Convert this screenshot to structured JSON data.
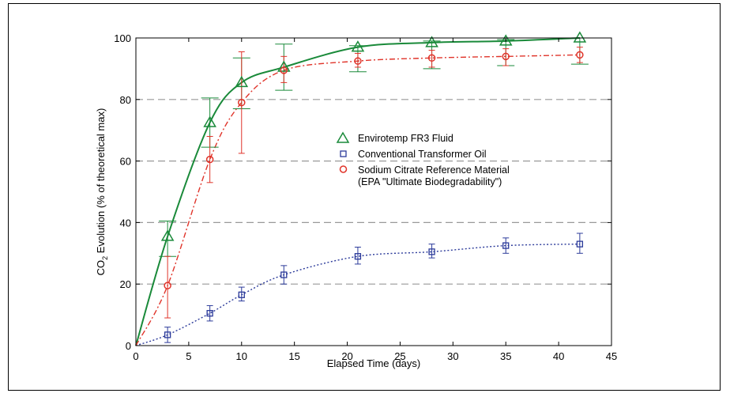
{
  "chart_data": {
    "type": "scatter",
    "xlabel": "Elapsed Time (days)",
    "ylabel": {
      "prefix": "CO",
      "subscript": "2",
      "suffix": " Evolution (% of theoretical max)"
    },
    "xlim": [
      0,
      45
    ],
    "ylim": [
      0,
      100
    ],
    "xticks": [
      0,
      5,
      10,
      15,
      20,
      25,
      30,
      35,
      40,
      45
    ],
    "yticks": [
      0,
      20,
      40,
      60,
      80,
      100
    ],
    "grid": {
      "horizontal_dashed_at": [
        20,
        40,
        60,
        80
      ]
    },
    "legend_placement": "center-right",
    "series": [
      {
        "name": "Envirotemp FR3 Fluid",
        "marker": "triangle",
        "color": "#1a8a3a",
        "curve_style": "solid",
        "x": [
          3,
          7,
          10,
          14,
          21,
          28,
          35,
          42
        ],
        "y": [
          35.5,
          72.5,
          85.5,
          90.5,
          97,
          98.5,
          99,
          100
        ],
        "err_low": [
          29,
          64.5,
          77,
          83,
          89,
          90,
          91,
          91.5
        ],
        "err_high": [
          40.5,
          80.5,
          93.5,
          98,
          97.5,
          99,
          99.5,
          100
        ]
      },
      {
        "name": "Conventional Transformer Oil",
        "marker": "square",
        "color": "#2b3a9a",
        "curve_style": "dotted",
        "x": [
          3,
          7,
          10,
          14,
          21,
          28,
          35,
          42
        ],
        "y": [
          3.5,
          10.5,
          16.5,
          23,
          29,
          30.5,
          32.5,
          33
        ],
        "err_low": [
          1,
          8,
          14.5,
          20,
          26.5,
          28.5,
          30,
          30
        ],
        "err_high": [
          6,
          13,
          19,
          26,
          32,
          33,
          35,
          36.5
        ]
      },
      {
        "name": "Sodium Citrate Reference Material",
        "name_line2": "(EPA \"Ultimate Biodegradability\")",
        "marker": "circle",
        "color": "#e0342a",
        "curve_style": "dashdot",
        "x": [
          3,
          7,
          10,
          14,
          21,
          28,
          35,
          42
        ],
        "y": [
          19.5,
          60.5,
          79,
          89.5,
          92.5,
          93.5,
          94,
          94.5
        ],
        "err_low": [
          9,
          53,
          62.5,
          85.5,
          90.5,
          90.5,
          91,
          92
        ],
        "err_high": [
          29,
          68,
          95.5,
          94,
          95,
          96,
          96.5,
          97
        ]
      }
    ]
  }
}
